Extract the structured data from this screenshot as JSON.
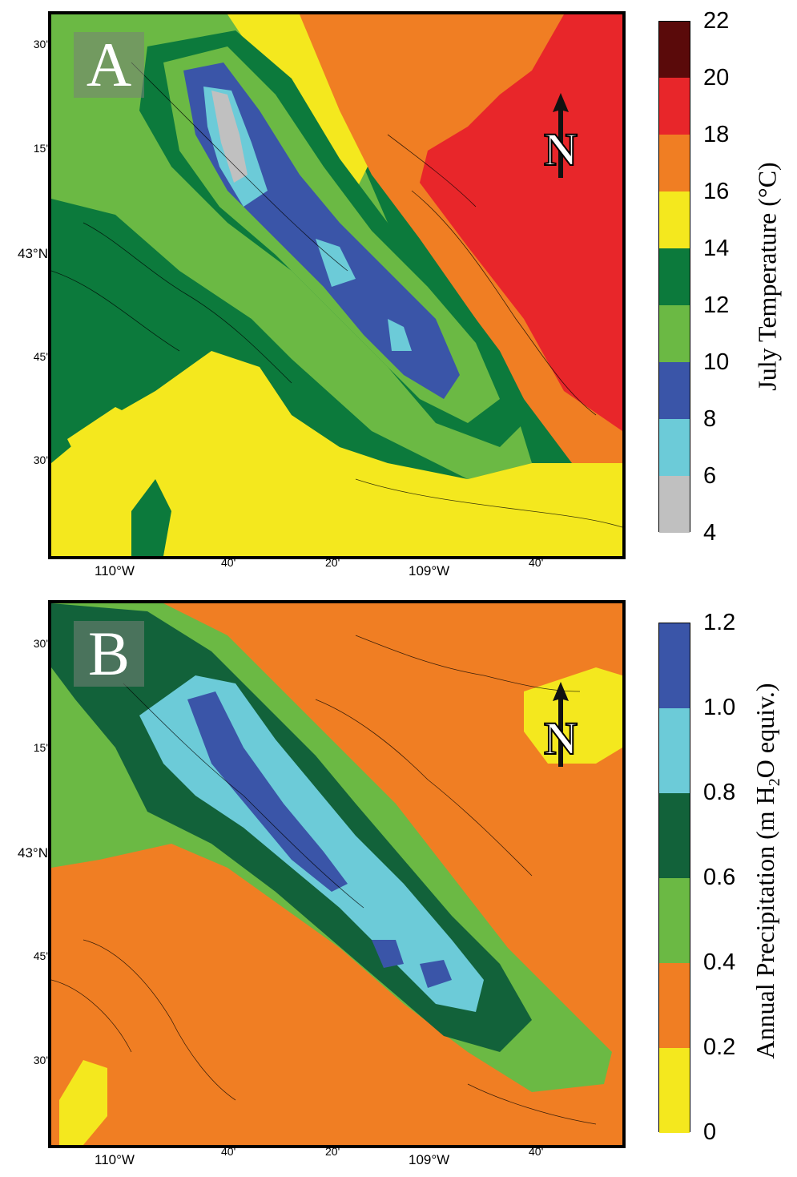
{
  "panels": [
    {
      "label": "A",
      "colorbar": {
        "title": "July Temperature (°C)",
        "ticks": [
          "22",
          "20",
          "18",
          "16",
          "14",
          "12",
          "10",
          "8",
          "6",
          "4"
        ],
        "colors": [
          "#5a0a0a",
          "#e8262a",
          "#f07e23",
          "#f4e81e",
          "#0c7a3c",
          "#6bb944",
          "#3a55a8",
          "#6ccbd8",
          "#c0c0c0"
        ]
      }
    },
    {
      "label": "B",
      "colorbar": {
        "title_parts": [
          "Annual Precipitation (m H",
          "2",
          "O equiv.)"
        ],
        "ticks": [
          "1.2",
          "1.0",
          "0.8",
          "0.6",
          "0.4",
          "0.2",
          "0"
        ],
        "colors": [
          "#3a55a8",
          "#6ccbd8",
          "#12623a",
          "#6bb944",
          "#f07e23",
          "#f4e81e"
        ]
      }
    }
  ],
  "axes": {
    "lat_ticks": [
      "30'",
      "15'",
      "43°N",
      "45'",
      "30'"
    ],
    "lon_ticks": [
      "110°W",
      "40'",
      "20'",
      "109°W",
      "40'"
    ]
  },
  "north_arrow_label": "N"
}
